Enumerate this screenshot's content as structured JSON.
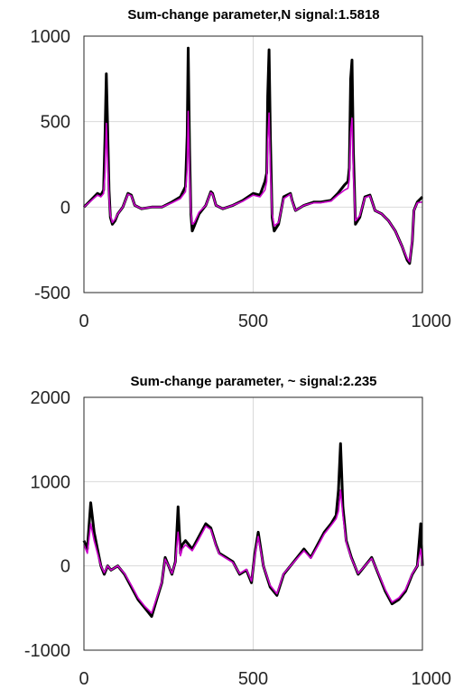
{
  "chart_data": [
    {
      "type": "line",
      "title": "Sum-change parameter,N signal:1.5818",
      "xlabel": "",
      "ylabel": "",
      "xlim": [
        0,
        1000
      ],
      "ylim": [
        -500,
        1000
      ],
      "xticks": [
        0,
        500,
        1000
      ],
      "yticks": [
        -500,
        0,
        500,
        1000
      ],
      "x_tick_labels": [
        "0",
        "500",
        "1000"
      ],
      "y_tick_labels": [
        "-500",
        "0",
        "500",
        "1000"
      ],
      "grid": true,
      "series": [
        {
          "color": "#000000",
          "x": [
            0,
            20,
            40,
            50,
            58,
            62,
            66,
            70,
            74,
            78,
            84,
            92,
            100,
            115,
            130,
            140,
            150,
            170,
            200,
            230,
            260,
            285,
            300,
            305,
            308,
            312,
            316,
            320,
            326,
            340,
            360,
            375,
            380,
            390,
            410,
            440,
            470,
            500,
            520,
            535,
            540,
            543,
            547,
            551,
            556,
            562,
            575,
            590,
            610,
            615,
            625,
            650,
            680,
            700,
            730,
            750,
            770,
            780,
            784,
            788,
            792,
            796,
            802,
            815,
            830,
            845,
            860,
            880,
            900,
            920,
            940,
            955,
            962,
            970,
            975,
            985,
            1000
          ],
          "y": [
            0,
            40,
            80,
            70,
            100,
            400,
            780,
            450,
            100,
            -60,
            -100,
            -80,
            -40,
            0,
            80,
            70,
            10,
            -10,
            0,
            0,
            30,
            60,
            120,
            420,
            930,
            350,
            -40,
            -140,
            -110,
            -40,
            10,
            90,
            80,
            10,
            -10,
            10,
            40,
            80,
            70,
            150,
            200,
            650,
            920,
            400,
            -60,
            -140,
            -100,
            60,
            80,
            40,
            -20,
            10,
            30,
            30,
            40,
            80,
            130,
            150,
            230,
            750,
            860,
            330,
            -100,
            -60,
            60,
            70,
            -20,
            -40,
            -80,
            -140,
            -230,
            -310,
            -330,
            -200,
            -20,
            30,
            60
          ]
        },
        {
          "color": "#cc00cc",
          "x": [
            0,
            20,
            40,
            50,
            58,
            62,
            66,
            70,
            74,
            78,
            84,
            92,
            100,
            115,
            130,
            140,
            150,
            170,
            200,
            230,
            260,
            285,
            300,
            305,
            308,
            312,
            316,
            320,
            326,
            340,
            360,
            375,
            380,
            390,
            410,
            440,
            470,
            500,
            520,
            535,
            540,
            543,
            547,
            551,
            556,
            562,
            575,
            590,
            610,
            615,
            625,
            650,
            680,
            700,
            730,
            750,
            770,
            780,
            784,
            788,
            792,
            796,
            802,
            815,
            830,
            845,
            860,
            880,
            900,
            920,
            940,
            955,
            962,
            970,
            975,
            985,
            1000
          ],
          "y": [
            0,
            35,
            70,
            60,
            80,
            200,
            490,
            250,
            60,
            -50,
            -90,
            -70,
            -40,
            0,
            75,
            65,
            10,
            -10,
            0,
            0,
            25,
            50,
            90,
            220,
            560,
            200,
            -30,
            -100,
            -90,
            -30,
            10,
            85,
            75,
            10,
            -10,
            10,
            35,
            70,
            60,
            100,
            150,
            380,
            550,
            220,
            -40,
            -110,
            -90,
            50,
            75,
            35,
            -20,
            10,
            25,
            25,
            35,
            70,
            100,
            110,
            160,
            440,
            520,
            200,
            -80,
            -50,
            55,
            65,
            -20,
            -40,
            -80,
            -140,
            -230,
            -300,
            -320,
            -190,
            -20,
            25,
            30
          ]
        }
      ]
    },
    {
      "type": "line",
      "title": "Sum-change parameter, ~ signal:2.235",
      "xlabel": "",
      "ylabel": "",
      "xlim": [
        0,
        1000
      ],
      "ylim": [
        -1000,
        2000
      ],
      "xticks": [
        0,
        500,
        1000
      ],
      "yticks": [
        -1000,
        0,
        1000,
        2000
      ],
      "x_tick_labels": [
        "0",
        "500",
        "1000"
      ],
      "y_tick_labels": [
        "-1000",
        "0",
        "1000",
        "2000"
      ],
      "grid": true,
      "series": [
        {
          "color": "#000000",
          "x": [
            0,
            10,
            20,
            30,
            40,
            50,
            60,
            70,
            80,
            100,
            120,
            140,
            160,
            180,
            200,
            215,
            230,
            240,
            250,
            260,
            270,
            278,
            285,
            290,
            300,
            320,
            340,
            360,
            375,
            390,
            400,
            420,
            440,
            460,
            480,
            495,
            505,
            515,
            530,
            550,
            570,
            590,
            610,
            630,
            650,
            670,
            690,
            710,
            730,
            745,
            752,
            758,
            765,
            775,
            790,
            810,
            830,
            850,
            870,
            890,
            910,
            930,
            950,
            970,
            985,
            995,
            1000
          ],
          "y": [
            300,
            200,
            750,
            400,
            200,
            0,
            -100,
            0,
            -50,
            0,
            -100,
            -250,
            -400,
            -500,
            -600,
            -400,
            -200,
            100,
            0,
            -100,
            50,
            700,
            150,
            250,
            300,
            200,
            350,
            500,
            450,
            250,
            150,
            100,
            50,
            -100,
            -50,
            -200,
            150,
            400,
            0,
            -250,
            -350,
            -100,
            0,
            100,
            200,
            100,
            250,
            400,
            500,
            600,
            900,
            1450,
            700,
            300,
            100,
            -100,
            0,
            100,
            -100,
            -300,
            -450,
            -400,
            -300,
            -100,
            0,
            500,
            0
          ]
        },
        {
          "color": "#cc00cc",
          "x": [
            0,
            10,
            20,
            30,
            40,
            50,
            60,
            70,
            80,
            100,
            120,
            140,
            160,
            180,
            200,
            215,
            230,
            240,
            250,
            260,
            270,
            278,
            285,
            290,
            300,
            320,
            340,
            360,
            375,
            390,
            400,
            420,
            440,
            460,
            480,
            495,
            505,
            515,
            530,
            550,
            570,
            590,
            610,
            630,
            650,
            670,
            690,
            710,
            730,
            745,
            752,
            758,
            765,
            775,
            790,
            810,
            830,
            850,
            870,
            890,
            910,
            930,
            950,
            970,
            985,
            995,
            1000
          ],
          "y": [
            250,
            150,
            500,
            300,
            150,
            0,
            -80,
            0,
            -50,
            0,
            -90,
            -230,
            -380,
            -480,
            -560,
            -380,
            -190,
            80,
            0,
            -90,
            40,
            400,
            120,
            200,
            250,
            180,
            320,
            470,
            430,
            240,
            140,
            90,
            40,
            -90,
            -40,
            -180,
            120,
            350,
            0,
            -230,
            -330,
            -90,
            0,
            90,
            180,
            90,
            230,
            380,
            480,
            560,
            650,
            900,
            600,
            280,
            90,
            -90,
            0,
            90,
            -90,
            -280,
            -430,
            -380,
            -280,
            -90,
            0,
            200,
            0
          ]
        }
      ]
    }
  ]
}
